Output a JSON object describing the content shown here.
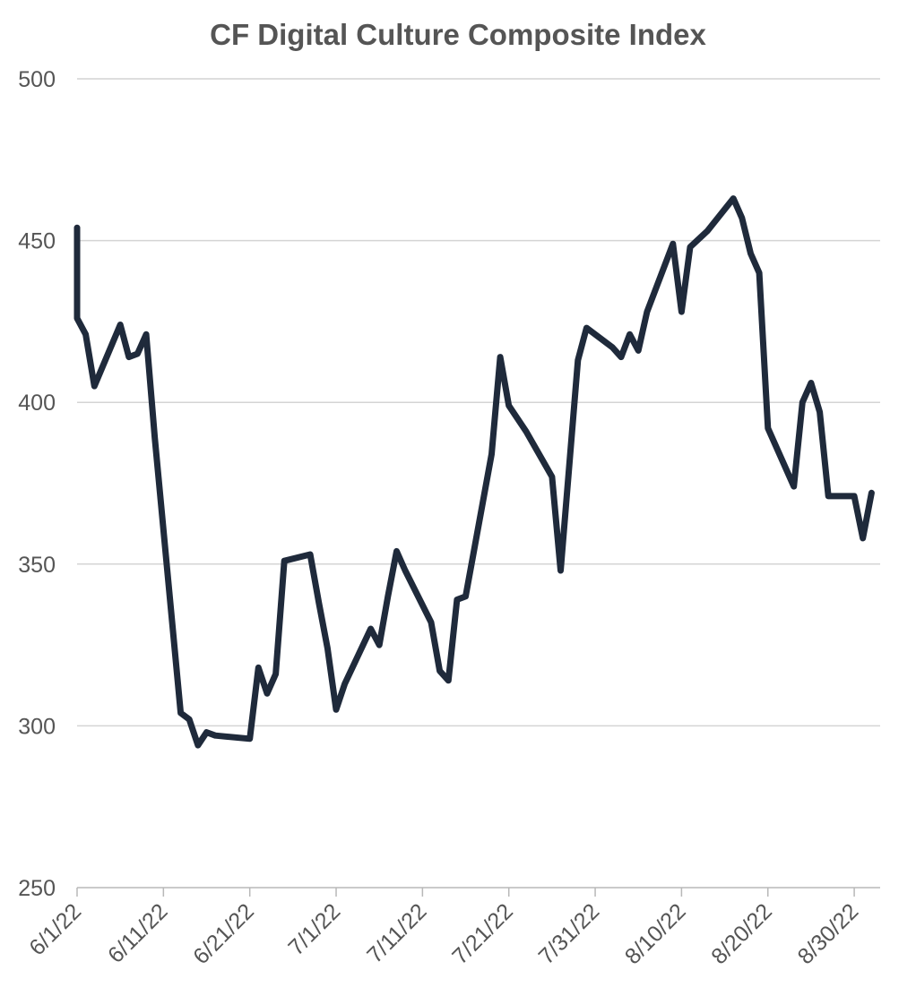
{
  "chart_data": {
    "type": "line",
    "title": "CF Digital Culture Composite Index",
    "xlabel": "",
    "ylabel": "",
    "ylim": [
      250,
      500
    ],
    "yticks": [
      "500",
      "450",
      "400",
      "350",
      "300",
      "250"
    ],
    "xticks": [
      "6/1/22",
      "6/11/22",
      "6/21/22",
      "7/1/22",
      "7/11/22",
      "7/21/22",
      "7/31/22",
      "8/10/22",
      "8/20/22",
      "8/30/22"
    ],
    "xrange": [
      "2022-06-01",
      "2022-09-02"
    ],
    "grid": true,
    "legend": "none",
    "series": [
      {
        "color": "#1f2a3b",
        "points": [
          [
            "2022-06-01",
            454
          ],
          [
            "2022-06-01",
            435
          ],
          [
            "2022-06-01",
            426
          ],
          [
            "2022-06-02",
            421
          ],
          [
            "2022-06-03",
            405
          ],
          [
            "2022-06-06",
            424
          ],
          [
            "2022-06-07",
            414
          ],
          [
            "2022-06-08",
            415
          ],
          [
            "2022-06-09",
            421
          ],
          [
            "2022-06-10",
            389
          ],
          [
            "2022-06-13",
            304
          ],
          [
            "2022-06-14",
            302
          ],
          [
            "2022-06-15",
            294
          ],
          [
            "2022-06-16",
            298
          ],
          [
            "2022-06-17",
            297
          ],
          [
            "2022-06-21",
            296
          ],
          [
            "2022-06-22",
            318
          ],
          [
            "2022-06-23",
            310
          ],
          [
            "2022-06-24",
            316
          ],
          [
            "2022-06-25",
            351
          ],
          [
            "2022-06-28",
            353
          ],
          [
            "2022-06-29",
            338
          ],
          [
            "2022-06-30",
            324
          ],
          [
            "2022-07-01",
            305
          ],
          [
            "2022-07-02",
            313
          ],
          [
            "2022-07-05",
            330
          ],
          [
            "2022-07-06",
            325
          ],
          [
            "2022-07-07",
            340
          ],
          [
            "2022-07-08",
            354
          ],
          [
            "2022-07-09",
            348
          ],
          [
            "2022-07-12",
            332
          ],
          [
            "2022-07-13",
            317
          ],
          [
            "2022-07-14",
            314
          ],
          [
            "2022-07-15",
            339
          ],
          [
            "2022-07-16",
            340
          ],
          [
            "2022-07-19",
            384
          ],
          [
            "2022-07-20",
            414
          ],
          [
            "2022-07-21",
            399
          ],
          [
            "2022-07-22",
            395
          ],
          [
            "2022-07-23",
            391
          ],
          [
            "2022-07-26",
            377
          ],
          [
            "2022-07-27",
            348
          ],
          [
            "2022-07-29",
            413
          ],
          [
            "2022-07-30",
            423
          ],
          [
            "2022-08-02",
            417
          ],
          [
            "2022-08-03",
            414
          ],
          [
            "2022-08-04",
            421
          ],
          [
            "2022-08-05",
            416
          ],
          [
            "2022-08-06",
            428
          ],
          [
            "2022-08-09",
            449
          ],
          [
            "2022-08-10",
            428
          ],
          [
            "2022-08-11",
            448
          ],
          [
            "2022-08-13",
            453
          ],
          [
            "2022-08-16",
            463
          ],
          [
            "2022-08-17",
            457
          ],
          [
            "2022-08-18",
            446
          ],
          [
            "2022-08-19",
            440
          ],
          [
            "2022-08-20",
            392
          ],
          [
            "2022-08-23",
            374
          ],
          [
            "2022-08-24",
            400
          ],
          [
            "2022-08-25",
            406
          ],
          [
            "2022-08-26",
            397
          ],
          [
            "2022-08-27",
            371
          ],
          [
            "2022-08-30",
            371
          ],
          [
            "2022-08-31",
            358
          ],
          [
            "2022-09-01",
            372
          ]
        ]
      }
    ]
  }
}
